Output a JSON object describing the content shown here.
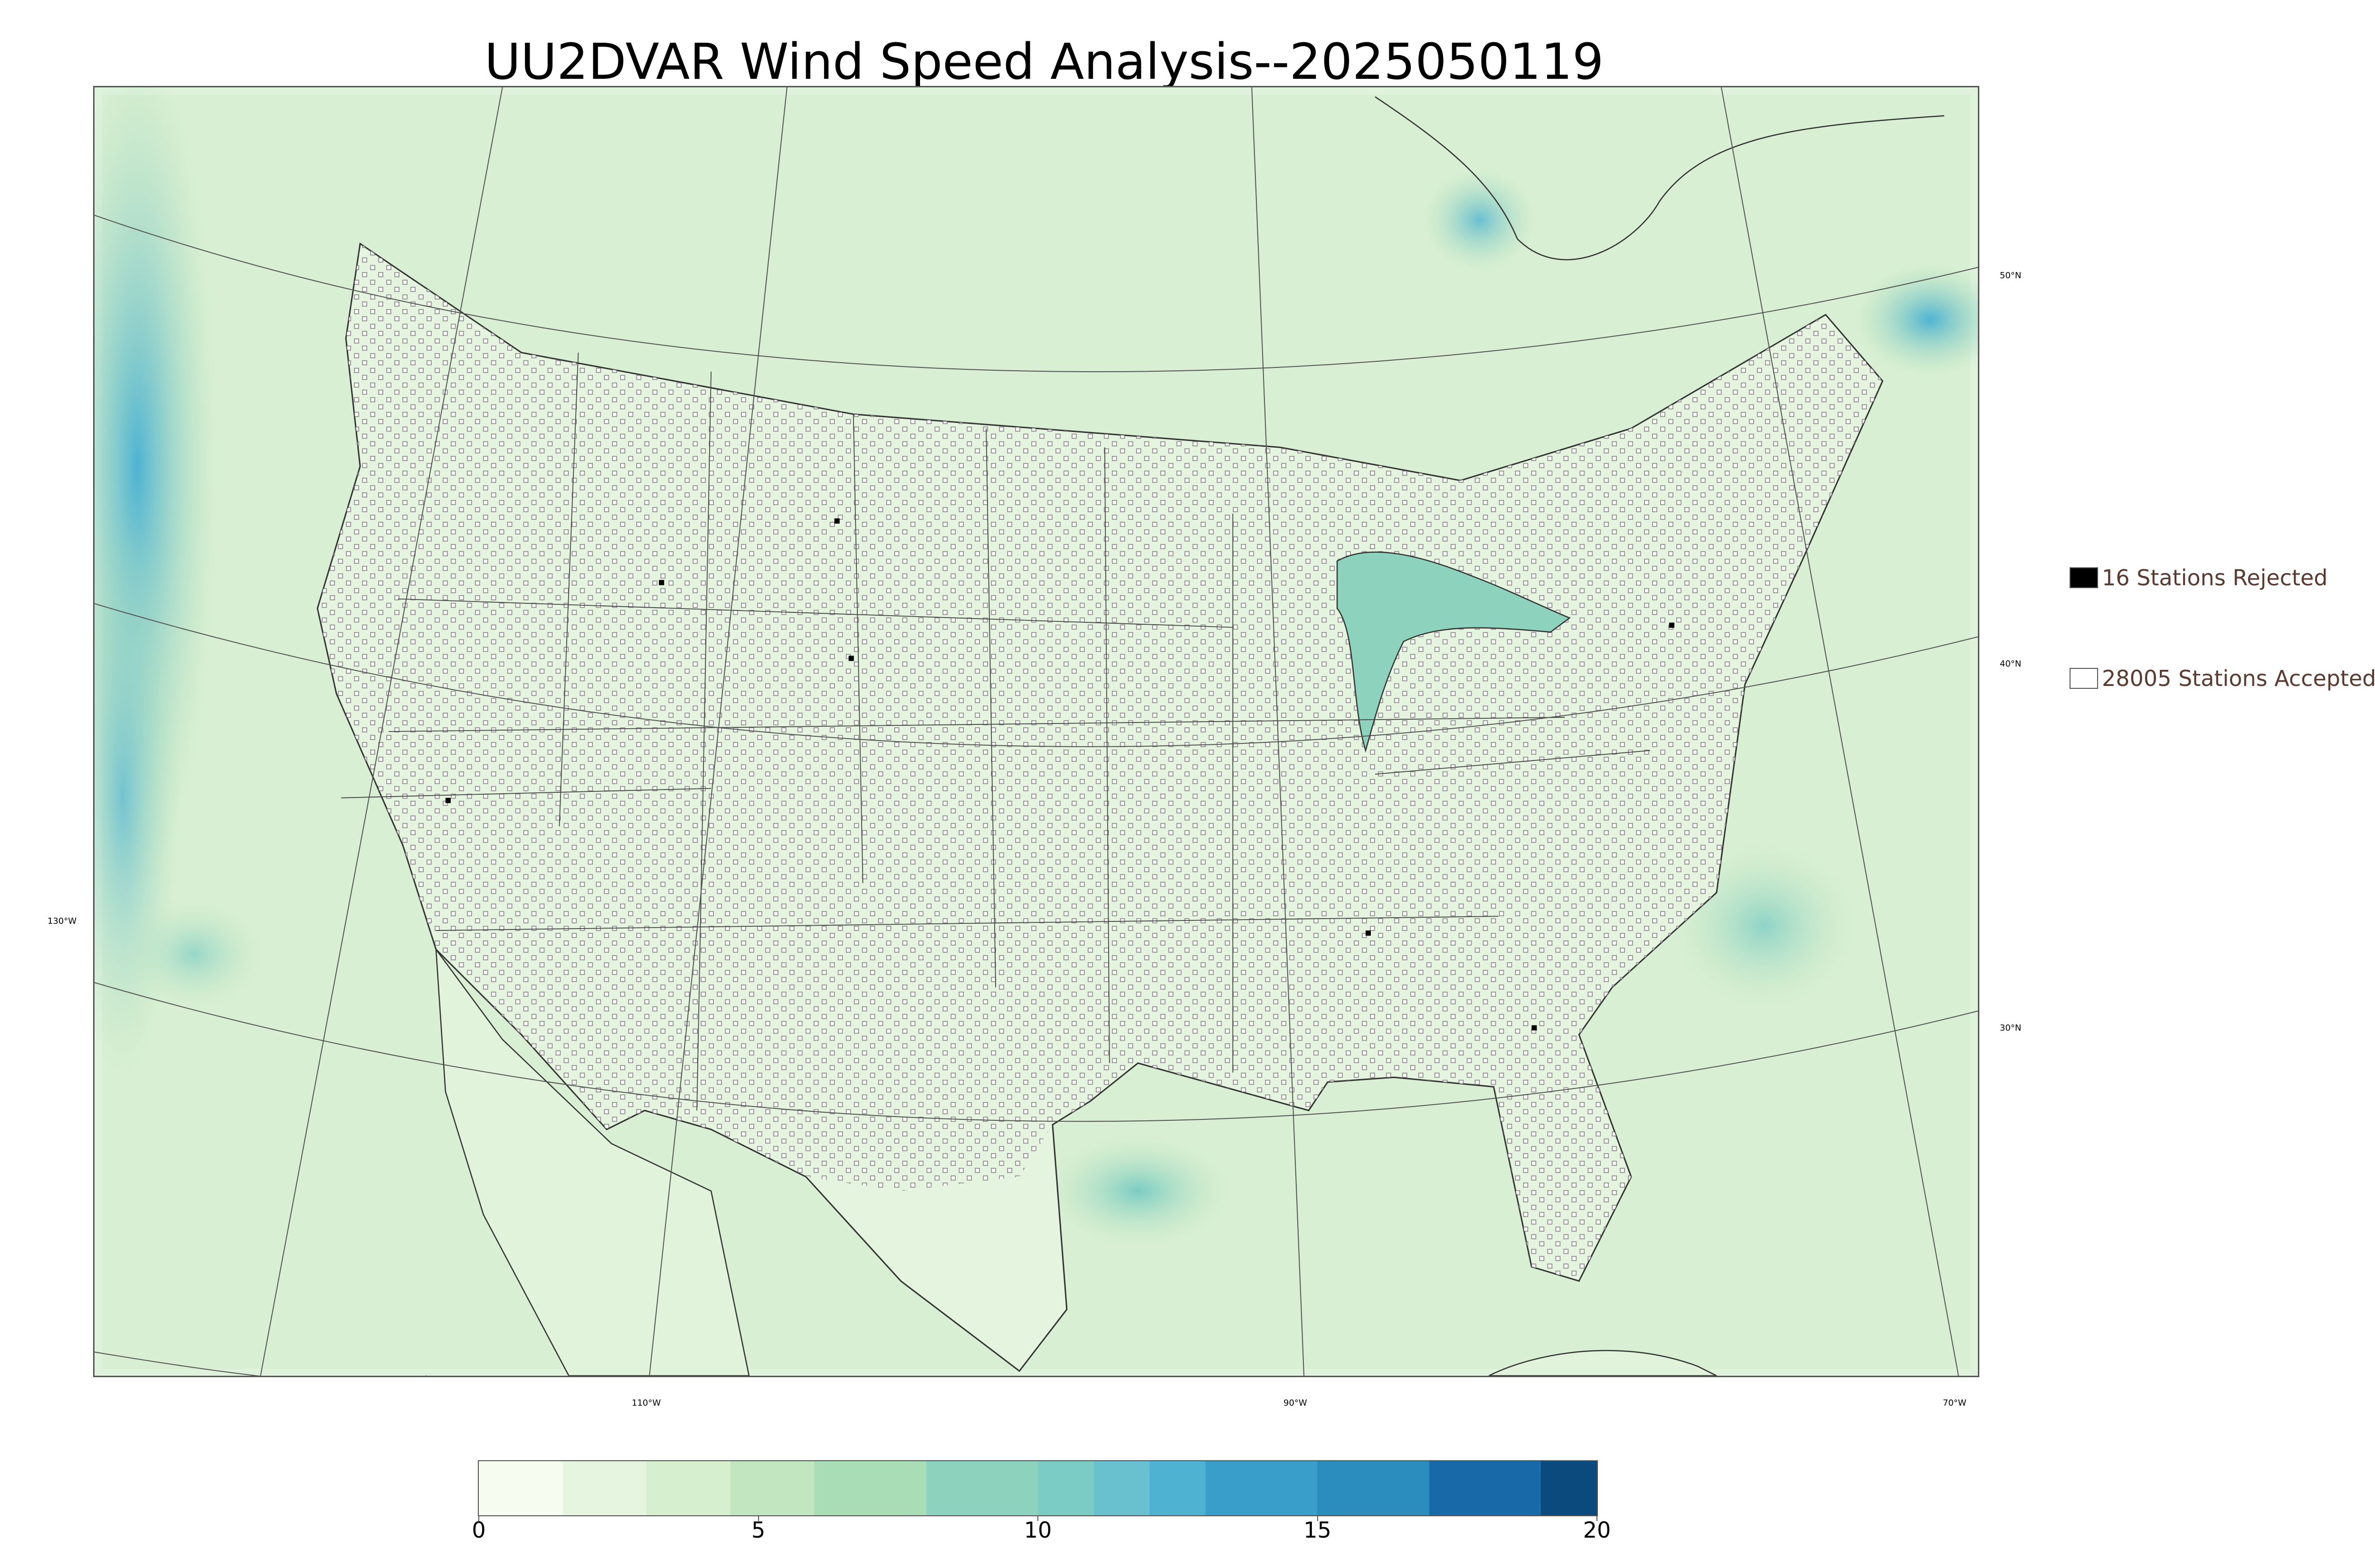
{
  "title": "UU2DVAR Wind Speed Analysis--2025050119",
  "map": {
    "lon_labels": [
      "130°W",
      "110°W",
      "90°W",
      "70°W"
    ],
    "lat_labels": [
      "50°N",
      "40°N",
      "30°N"
    ],
    "background_color": "#dff2dc"
  },
  "legend": {
    "rejected": {
      "label": "16 Stations Rejected",
      "color": "#000000"
    },
    "accepted": {
      "label": "28005 Stations Accepted",
      "color": "#ffffff"
    }
  },
  "colorbar": {
    "ticks": [
      "0",
      "5",
      "10",
      "15",
      "20"
    ],
    "range": [
      0,
      20
    ],
    "colors": [
      "#f7fcf0",
      "#e6f5df",
      "#d5efcf",
      "#c2e7c0",
      "#a8ddb5",
      "#8dd2bd",
      "#7bccc4",
      "#69c1cf",
      "#4eb3d3",
      "#3a9ecb",
      "#2b8cbe",
      "#1769a8",
      "#0a4a7d"
    ],
    "bounds": [
      0,
      1.5,
      3,
      4.5,
      6,
      8,
      10,
      11,
      12,
      13,
      15,
      17,
      19,
      20
    ]
  },
  "chart_data": {
    "type": "heatmap",
    "title": "UU2DVAR Wind Speed Analysis--2025050119",
    "color_scale_range": [
      0,
      20
    ],
    "legend": [
      "16 Stations Rejected",
      "28005 Stations Accepted"
    ],
    "stations_rejected": 16,
    "stations_accepted": 28005
  }
}
